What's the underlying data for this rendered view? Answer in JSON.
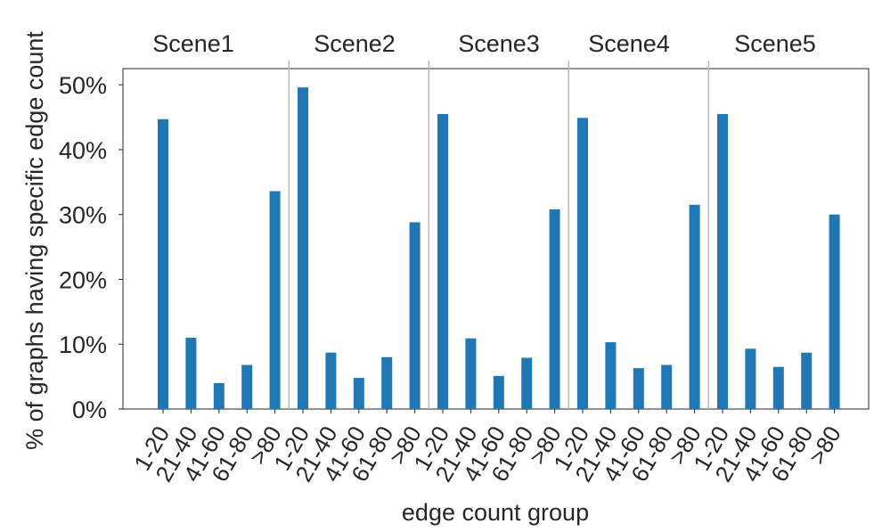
{
  "chart_data": {
    "type": "bar",
    "title": "",
    "xlabel": "edge count group",
    "ylabel": "% of graphs having specific edge count",
    "ylim": [
      0,
      52.5
    ],
    "yticks": [
      0,
      10,
      20,
      30,
      40,
      50
    ],
    "ytick_labels": [
      "0%",
      "10%",
      "20%",
      "30%",
      "40%",
      "50%"
    ],
    "grid": false,
    "categories": [
      "1-20",
      "21-40",
      "41-60",
      "61-80",
      ">80"
    ],
    "scenes": [
      {
        "name": "Scene1",
        "values": [
          44.7,
          11.0,
          4.0,
          6.8,
          33.6
        ]
      },
      {
        "name": "Scene2",
        "values": [
          49.6,
          8.7,
          4.8,
          8.0,
          28.8
        ]
      },
      {
        "name": "Scene3",
        "values": [
          45.5,
          10.9,
          5.1,
          7.9,
          30.8
        ]
      },
      {
        "name": "Scene4",
        "values": [
          44.9,
          10.3,
          6.3,
          6.8,
          31.5
        ]
      },
      {
        "name": "Scene5",
        "values": [
          45.5,
          9.3,
          6.5,
          8.7,
          30.0
        ]
      }
    ],
    "bar_color": "#1f77b4"
  }
}
